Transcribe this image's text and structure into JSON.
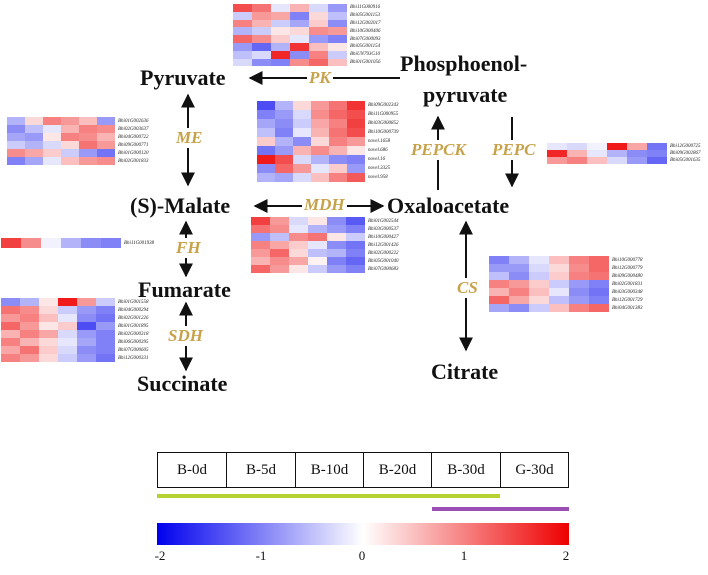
{
  "metabolites": {
    "pyruvate": "Pyruvate",
    "pep_line1": "Phosphoenol-",
    "pep_line2": "pyruvate",
    "malate": "(S)-Malate",
    "oxaloacetate": "Oxaloacetate",
    "fumarate": "Fumarate",
    "succinate": "Succinate",
    "citrate": "Citrate"
  },
  "enzymes": {
    "pk": "PK",
    "me": "ME",
    "pepck": "PEPCK",
    "pepc": "PEPC",
    "mdh": "MDH",
    "fh": "FH",
    "cs": "CS",
    "sdh": "SDH"
  },
  "heatmaps": {
    "pk": {
      "genes": [
        "Bhi11G000916",
        "Bhi05G001153",
        "Bhi12G002017",
        "Bhi10G000406",
        "Bhi07G000093",
        "Bhi05G001154",
        "BhiUN793G10",
        "Bhi01G001056"
      ],
      "values": [
        [
          1.4,
          1.1,
          -0.2,
          0.6,
          -0.3,
          -0.8
        ],
        [
          -0.4,
          0.8,
          0.7,
          -1.0,
          0.3,
          -0.5
        ],
        [
          1.0,
          0.6,
          -0.4,
          -0.7,
          0.4,
          -0.9
        ],
        [
          -0.6,
          -0.4,
          0.2,
          0.3,
          0.9,
          0.8
        ],
        [
          1.2,
          0.9,
          0.4,
          -0.2,
          -0.8,
          -1.0
        ],
        [
          -0.8,
          -1.2,
          -0.6,
          1.6,
          0.5,
          0.2
        ],
        [
          -0.5,
          -0.3,
          1.7,
          -0.9,
          1.0,
          -0.4
        ],
        [
          -0.3,
          -0.9,
          -1.0,
          0.9,
          1.2,
          0.5
        ]
      ]
    },
    "me": {
      "genes": [
        "Bhi01G002636",
        "Bhi02G003637",
        "Bhi04G000722",
        "Bhi09G000771",
        "Bhi01G000120",
        "Bhi02G001833"
      ],
      "values": [
        [
          -0.6,
          0.3,
          1.0,
          0.8,
          0.5,
          -0.8
        ],
        [
          -0.9,
          -0.5,
          -0.2,
          0.6,
          1.0,
          0.9
        ],
        [
          -0.7,
          -0.8,
          0.2,
          1.0,
          0.9,
          0.6
        ],
        [
          -0.4,
          -0.6,
          -0.3,
          0.3,
          1.1,
          0.8
        ],
        [
          0.9,
          0.7,
          0.4,
          -0.4,
          -0.8,
          -1.1
        ],
        [
          -1.0,
          -0.7,
          -0.2,
          0.5,
          0.8,
          0.9
        ]
      ]
    },
    "pepck": {
      "genes": [
        "Bhi09G002343",
        "Bhi11G000955",
        "Bhi03G000852",
        "Bhi10G000739",
        "novel.1658",
        "novel.686",
        "novel.16",
        "novel.3325",
        "novel.958"
      ],
      "values": [
        [
          -1.4,
          -0.6,
          0.3,
          0.8,
          1.1,
          1.6
        ],
        [
          -1.0,
          -0.8,
          -0.3,
          0.9,
          1.2,
          1.4
        ],
        [
          -0.7,
          -0.9,
          -0.4,
          0.7,
          1.0,
          1.5
        ],
        [
          -0.5,
          -1.0,
          -0.2,
          0.6,
          1.1,
          1.4
        ],
        [
          0.4,
          -0.6,
          -0.9,
          0.3,
          1.0,
          0.8
        ],
        [
          -1.1,
          -0.8,
          0.6,
          0.9,
          0.6,
          0.2
        ],
        [
          1.8,
          1.4,
          -0.3,
          -0.6,
          -0.9,
          -1.0
        ],
        [
          -0.9,
          1.2,
          0.8,
          -0.2,
          0.4,
          -0.8
        ],
        [
          -0.6,
          -0.7,
          -0.3,
          0.5,
          1.0,
          1.3
        ]
      ]
    },
    "pepc": {
      "genes": [
        "Bhi12G000725",
        "Bhi09G002867",
        "Bhi05G001635"
      ],
      "values": [
        [
          -0.2,
          -0.3,
          -0.1,
          1.8,
          0.7,
          -1.1
        ],
        [
          1.7,
          0.6,
          -0.2,
          -0.6,
          -0.9,
          -1.0
        ],
        [
          0.8,
          1.0,
          0.5,
          -0.3,
          -0.8,
          -1.2
        ]
      ]
    },
    "mdh": {
      "genes": [
        "Bhi01G002544",
        "Bhi03G000537",
        "Bhi10G000427",
        "Bhi12G001426",
        "Bhi02G000222",
        "Bhi05G001040",
        "Bhi07G000683"
      ],
      "values": [
        [
          1.5,
          0.8,
          -0.3,
          0.2,
          -0.9,
          -1.3
        ],
        [
          1.1,
          0.9,
          -0.2,
          -0.6,
          -0.8,
          -1.0
        ],
        [
          -0.8,
          -0.5,
          0.9,
          1.1,
          0.2,
          -0.4
        ],
        [
          1.0,
          0.7,
          0.4,
          -0.2,
          -0.9,
          -1.1
        ],
        [
          0.8,
          1.2,
          0.3,
          -0.5,
          -0.6,
          -1.0
        ],
        [
          0.6,
          0.9,
          0.7,
          0.1,
          -1.0,
          -1.2
        ],
        [
          1.2,
          0.8,
          0.2,
          -0.4,
          -0.8,
          -1.0
        ]
      ]
    },
    "fh": {
      "genes": [
        "Bhi11G001938"
      ],
      "values": [
        [
          1.5,
          0.9,
          -0.1,
          -0.6,
          -0.9,
          -1.0
        ]
      ]
    },
    "cs": {
      "genes": [
        "Bhi10G000778",
        "Bhi12G000779",
        "Bhi09G000480",
        "Bhi02G001831",
        "Bhi03G000348",
        "Bhi12G001729",
        "Bhi04G001383"
      ],
      "values": [
        [
          -1.0,
          -0.6,
          -0.2,
          0.5,
          1.0,
          1.2
        ],
        [
          -0.8,
          -0.8,
          -0.3,
          0.3,
          0.9,
          1.2
        ],
        [
          -0.5,
          -0.9,
          -0.4,
          0.4,
          1.0,
          1.1
        ],
        [
          1.0,
          0.8,
          0.4,
          -0.4,
          -0.8,
          -1.0
        ],
        [
          0.6,
          1.0,
          0.5,
          -0.2,
          -0.9,
          -1.1
        ],
        [
          1.2,
          0.7,
          0.3,
          -0.5,
          -0.8,
          -1.0
        ],
        [
          -0.7,
          -0.9,
          -0.4,
          0.5,
          1.0,
          1.2
        ]
      ]
    },
    "sdh": {
      "genes": [
        "Bhi01G001558",
        "Bhi04G000294",
        "Bhi02G001226",
        "Bhi01G001895",
        "Bhi02G000318",
        "Bhi06G000395",
        "Bhi07G000605",
        "Bhi12G000331"
      ],
      "values": [
        [
          -0.9,
          -0.6,
          0.2,
          1.8,
          0.8,
          -0.4
        ],
        [
          1.1,
          0.9,
          0.3,
          -0.4,
          -0.8,
          -1.0
        ],
        [
          0.8,
          1.0,
          0.5,
          -0.2,
          -0.9,
          -1.1
        ],
        [
          1.2,
          0.8,
          0.2,
          0.4,
          -1.4,
          -0.8
        ],
        [
          0.6,
          1.0,
          0.7,
          -0.3,
          -0.8,
          -1.0
        ],
        [
          1.0,
          0.6,
          0.3,
          -0.2,
          -0.7,
          -1.0
        ],
        [
          0.7,
          1.1,
          0.4,
          -0.3,
          -0.9,
          -1.0
        ],
        [
          1.0,
          0.8,
          0.3,
          -0.4,
          -0.8,
          -1.1
        ]
      ]
    }
  },
  "stages": [
    "B-0d",
    "B-5d",
    "B-10d",
    "B-20d",
    "B-30d",
    "G-30d"
  ],
  "group_bars": {
    "green": "#b5d233",
    "purple": "#9b4fb4"
  },
  "colorbar": {
    "min": -2,
    "max": 2,
    "ticks": [
      "-2",
      "-1",
      "0",
      "1",
      "2"
    ],
    "low_color": "#0000ee",
    "mid_color": "#ffffff",
    "high_color": "#ee0000"
  }
}
